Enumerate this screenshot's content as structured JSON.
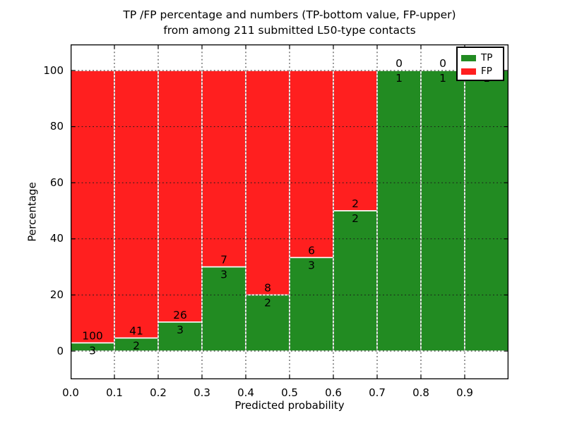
{
  "chart_data": {
    "type": "bar",
    "stacked": true,
    "title_line1": "TP /FP percentage and numbers (TP-bottom value, FP-upper)",
    "title_line2": "from among 211 submitted L50-type contacts",
    "xlabel": "Predicted probability",
    "ylabel": "Percentage",
    "total_submitted": 211,
    "bin_starts": [
      0.0,
      0.1,
      0.2,
      0.3,
      0.4,
      0.5,
      0.6,
      0.7,
      0.8,
      0.9
    ],
    "bin_width": 0.1,
    "series": [
      {
        "name": "TP",
        "color": "#228b22",
        "counts": [
          3,
          2,
          3,
          3,
          2,
          3,
          2,
          1,
          1,
          1
        ]
      },
      {
        "name": "FP",
        "color": "#ff1f1f",
        "counts": [
          100,
          41,
          26,
          7,
          8,
          6,
          2,
          0,
          0,
          0
        ]
      }
    ],
    "tp_percent": [
      2.91,
      4.65,
      10.34,
      30.0,
      20.0,
      33.33,
      50.0,
      100.0,
      100.0,
      100.0
    ],
    "xtick_labels": [
      "0.0",
      "0.1",
      "0.2",
      "0.3",
      "0.4",
      "0.5",
      "0.6",
      "0.7",
      "0.8",
      "0.9"
    ],
    "ytick_values": [
      0,
      20,
      40,
      60,
      80,
      100
    ],
    "xlim": [
      0.0,
      1.0
    ],
    "ylim": [
      -10.1,
      109.3
    ],
    "grid": {
      "style": "dotted",
      "color": "#1a1a1a",
      "on": true
    },
    "bar_edge_color": "#ffffff",
    "legend": {
      "position": "upper-right",
      "entries": [
        {
          "label": "TP",
          "color": "#228b22"
        },
        {
          "label": "FP",
          "color": "#ff1f1f"
        }
      ]
    }
  }
}
